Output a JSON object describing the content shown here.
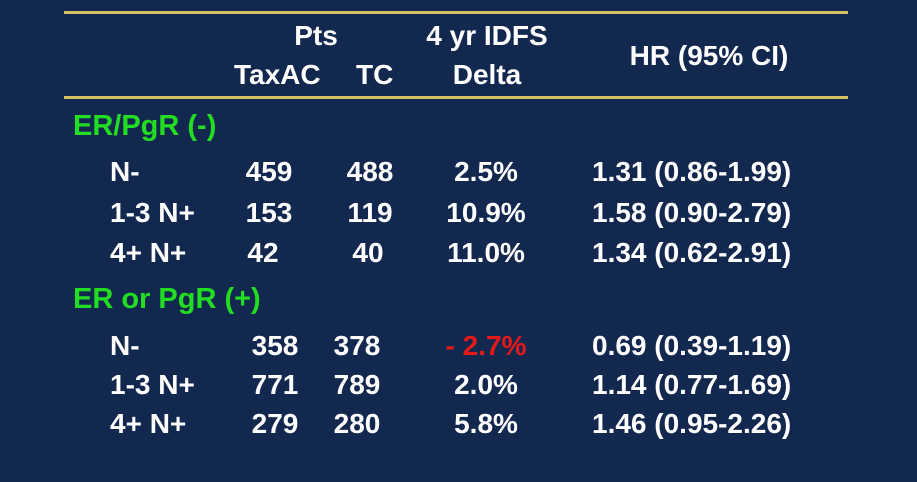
{
  "header": {
    "pts": "Pts",
    "col_taxac": "TaxAC",
    "col_tc": "TC",
    "idfs_line1": "4 yr IDFS",
    "idfs_line2": "Delta",
    "hr": "HR (95% CI)"
  },
  "groups": [
    {
      "label": "ER/PgR (-)",
      "rows": [
        {
          "nodes": "N-",
          "taxac": "459",
          "tc": "488",
          "delta": "2.5%",
          "hr": "1.31 (0.86-1.99)"
        },
        {
          "nodes": "1-3 N+",
          "taxac": "153",
          "tc": "119",
          "delta": "10.9%",
          "hr": "1.58 (0.90-2.79)"
        },
        {
          "nodes": "4+ N+",
          "taxac": "42",
          "tc": "40",
          "delta": "11.0%",
          "hr": "1.34 (0.62-2.91)"
        }
      ]
    },
    {
      "label": "ER or PgR (+)",
      "rows": [
        {
          "nodes": "N-",
          "taxac": "358",
          "tc": "378",
          "delta": "- 2.7%",
          "hr": "0.69 (0.39-1.19)"
        },
        {
          "nodes": "1-3 N+",
          "taxac": "771",
          "tc": "789",
          "delta": "2.0%",
          "hr": "1.14 (0.77-1.69)"
        },
        {
          "nodes": "4+ N+",
          "taxac": "279",
          "tc": "280",
          "delta": "5.8%",
          "hr": "1.46 (0.95-2.26)"
        }
      ]
    }
  ],
  "colors": {
    "background": "#13284f",
    "rule": "#d8c060",
    "group_label": "#22dd22",
    "negative_value": "#e41a1a",
    "text": "#ffffff"
  }
}
